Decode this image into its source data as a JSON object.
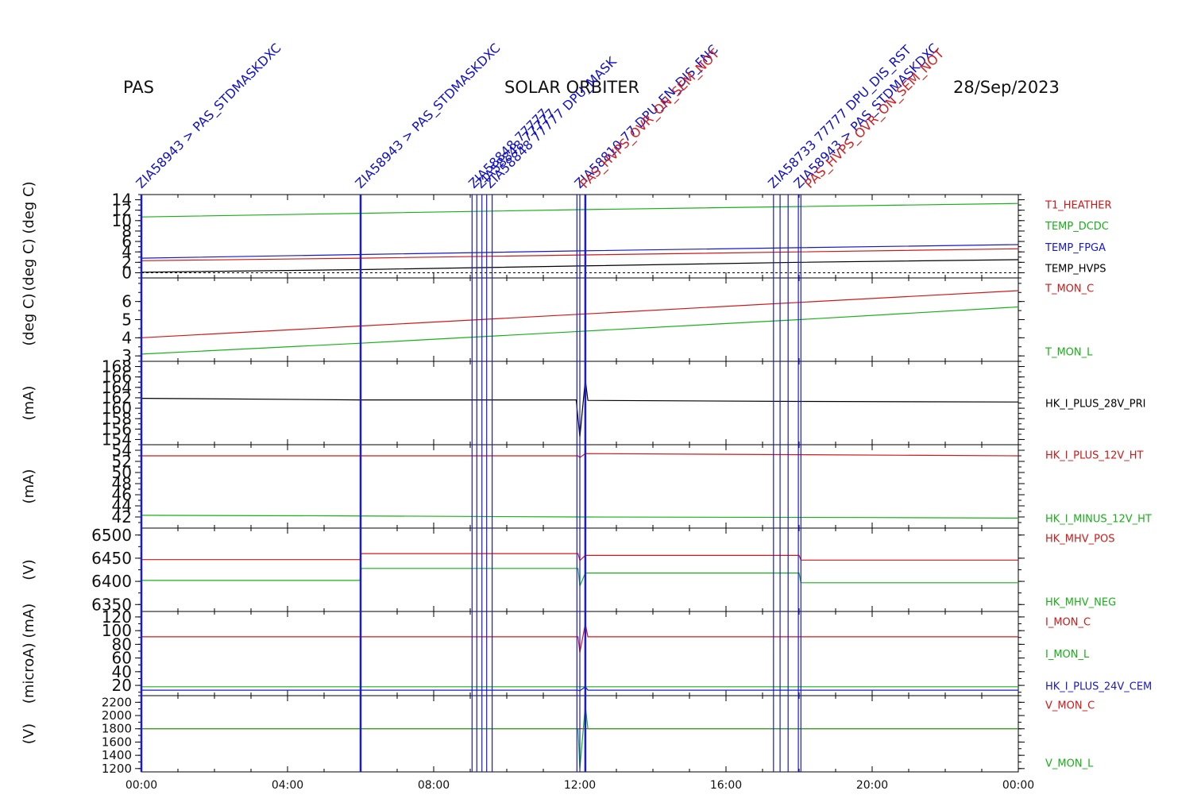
{
  "header": {
    "instrument": "PAS",
    "mission": "SOLAR ORBITER",
    "date": "28/Sep/2023"
  },
  "colors": {
    "black": "#000000",
    "red": "#d01818",
    "green": "#18b018",
    "blue": "#1818c8",
    "marker": "#1a1ad0"
  },
  "commands": {
    "labels": [
      {
        "hour": 0.0,
        "text": "ZIA58943 > PAS_STDMASKDXC",
        "color": "blue"
      },
      {
        "hour": 6.0,
        "text": "ZIA58943 > PAS_STDMASKDXC",
        "color": "blue"
      },
      {
        "hour": 9.1,
        "text": "ZIA58848 77777",
        "color": "blue"
      },
      {
        "hour": 9.3,
        "text": "ZIA58848 77777",
        "color": "blue"
      },
      {
        "hour": 9.55,
        "text": "ZIA58848 77777 DPU_MASK",
        "color": "blue"
      },
      {
        "hour": 12.0,
        "text": "ZIA58810 77 DPU_EN_DIS_FNC",
        "color": "blue"
      },
      {
        "hour": 12.15,
        "text": "PAS_HVPS_OVR_ON_SEM_NOT",
        "color": "red"
      },
      {
        "hour": 17.3,
        "text": "ZIA58733 77777 DPU_DIS_RST",
        "color": "blue"
      },
      {
        "hour": 18.0,
        "text": "ZIA58943 > PAS_STDMASKDXC",
        "color": "blue"
      },
      {
        "hour": 18.3,
        "text": "PAS_HVPS_OVR_ON_SEM_NOT",
        "color": "red"
      }
    ],
    "marker_hours": [
      0.0,
      6.0,
      9.05,
      9.18,
      9.32,
      9.45,
      9.6,
      11.92,
      12.0,
      12.15,
      17.3,
      17.48,
      17.7,
      17.98,
      18.05
    ]
  },
  "chart_data": {
    "type": "line",
    "x_axis": {
      "ticks": [
        "00:00",
        "04:00",
        "08:00",
        "12:00",
        "16:00",
        "20:00",
        "00:00"
      ],
      "range_hours": [
        0,
        24
      ]
    },
    "panels": [
      {
        "ylabel": "(deg C)  (deg C)",
        "ylim": [
          -1,
          15
        ],
        "yticks": [
          "0",
          "2",
          "4",
          "6",
          "8",
          "10",
          "12",
          "14"
        ],
        "tick_style": "big",
        "zero_line": true,
        "series": [
          {
            "name": "T1_HEATHER",
            "color": "red",
            "points": [
              [
                0,
                2.3
              ],
              [
                6,
                2.8
              ],
              [
                12,
                3.4
              ],
              [
                18,
                4.0
              ],
              [
                24,
                4.6
              ]
            ]
          },
          {
            "name": "TEMP_DCDC",
            "color": "green",
            "points": [
              [
                0,
                10.7
              ],
              [
                6,
                11.4
              ],
              [
                12,
                12.1
              ],
              [
                18,
                12.7
              ],
              [
                24,
                13.3
              ]
            ]
          },
          {
            "name": "TEMP_FPGA",
            "color": "blue",
            "points": [
              [
                0,
                2.8
              ],
              [
                6,
                3.5
              ],
              [
                12,
                4.2
              ],
              [
                18,
                4.8
              ],
              [
                24,
                5.4
              ]
            ]
          },
          {
            "name": "TEMP_HVPS",
            "color": "black",
            "points": [
              [
                0,
                0.1
              ],
              [
                6,
                0.6
              ],
              [
                12,
                1.3
              ],
              [
                18,
                2.0
              ],
              [
                24,
                2.5
              ]
            ]
          }
        ]
      },
      {
        "ylabel": "(deg C)",
        "ylim": [
          2.7,
          7.3
        ],
        "yticks": [
          "3",
          "4",
          "5",
          "6"
        ],
        "tick_style": "big",
        "series": [
          {
            "name": "T_MON_C",
            "color": "red",
            "points": [
              [
                0,
                4.0
              ],
              [
                6,
                4.65
              ],
              [
                12,
                5.3
              ],
              [
                18,
                5.95
              ],
              [
                24,
                6.6
              ]
            ]
          },
          {
            "name": "T_MON_L",
            "color": "green",
            "points": [
              [
                0,
                3.1
              ],
              [
                6,
                3.7
              ],
              [
                12,
                4.35
              ],
              [
                18,
                5.0
              ],
              [
                24,
                5.7
              ]
            ]
          }
        ]
      },
      {
        "ylabel": "(mA)",
        "ylim": [
          153,
          169
        ],
        "yticks": [
          "154",
          "156",
          "158",
          "160",
          "162",
          "164",
          "166",
          "168"
        ],
        "tick_style": "big",
        "series": [
          {
            "name": "HK_I_PLUS_28V_PRI",
            "color": "black",
            "points": [
              [
                0,
                161.9
              ],
              [
                6,
                161.6
              ],
              [
                11.9,
                161.6
              ],
              [
                12.0,
                154.5
              ],
              [
                12.15,
                165.5
              ],
              [
                12.22,
                161.5
              ],
              [
                18,
                161.3
              ],
              [
                24,
                161.2
              ]
            ]
          }
        ]
      },
      {
        "ylabel": "(mA)",
        "ylim": [
          40,
          55
        ],
        "yticks": [
          "42",
          "44",
          "46",
          "48",
          "50",
          "52",
          "54"
        ],
        "tick_style": "big",
        "series": [
          {
            "name": "HK_I_PLUS_12V_HT",
            "color": "red",
            "points": [
              [
                0,
                53.0
              ],
              [
                11.95,
                53.0
              ],
              [
                12.0,
                52.7
              ],
              [
                12.15,
                53.4
              ],
              [
                24,
                53.0
              ]
            ]
          },
          {
            "name": "HK_I_MINUS_12V_HT",
            "color": "green",
            "points": [
              [
                0,
                42.3
              ],
              [
                5.5,
                42.2
              ],
              [
                12,
                42.0
              ],
              [
                20,
                41.9
              ],
              [
                24,
                41.8
              ]
            ]
          }
        ]
      },
      {
        "ylabel": "(V)",
        "ylim": [
          6335,
          6515
        ],
        "yticks": [
          "6350",
          "6400",
          "6450",
          "6500"
        ],
        "tick_style": "big",
        "series": [
          {
            "name": "HK_MHV_POS",
            "color": "red",
            "points": [
              [
                0,
                6447
              ],
              [
                5.98,
                6447
              ],
              [
                6.02,
                6460
              ],
              [
                11.95,
                6460
              ],
              [
                12.0,
                6445
              ],
              [
                12.15,
                6456
              ],
              [
                18.0,
                6456
              ],
              [
                18.05,
                6446
              ],
              [
                24,
                6446
              ]
            ]
          },
          {
            "name": "HK_MHV_NEG",
            "color": "green",
            "points": [
              [
                0,
                6402
              ],
              [
                5.98,
                6402
              ],
              [
                6.02,
                6428
              ],
              [
                11.95,
                6428
              ],
              [
                12.0,
                6390
              ],
              [
                12.15,
                6418
              ],
              [
                18.0,
                6418
              ],
              [
                18.05,
                6397
              ],
              [
                24,
                6397
              ]
            ]
          }
        ]
      },
      {
        "ylabel": "(microA) (mA)",
        "ylim": [
          5,
          128
        ],
        "yticks": [
          "20",
          "40",
          "60",
          "80",
          "100",
          "120"
        ],
        "tick_style": "big",
        "series": [
          {
            "name": "I_MON_C",
            "color": "red",
            "points": [
              [
                0,
                91
              ],
              [
                11.95,
                91
              ],
              [
                12.0,
                68
              ],
              [
                12.15,
                110
              ],
              [
                12.22,
                91
              ],
              [
                24,
                91
              ]
            ]
          },
          {
            "name": "I_MON_L",
            "color": "green",
            "points": [
              [
                0,
                18
              ],
              [
                24,
                18
              ]
            ]
          },
          {
            "name": "HK_I_PLUS_24V_CEM",
            "color": "blue",
            "points": [
              [
                0,
                13
              ],
              [
                11.95,
                13
              ],
              [
                12.0,
                12
              ],
              [
                12.15,
                18
              ],
              [
                12.22,
                13
              ],
              [
                24,
                13
              ]
            ]
          }
        ]
      },
      {
        "ylabel": "(V)",
        "ylim": [
          1150,
          2300
        ],
        "yticks": [
          "1200",
          "1400",
          "1600",
          "1800",
          "2000",
          "2200"
        ],
        "tick_style": "small",
        "series": [
          {
            "name": "V_MON_C",
            "color": "red",
            "points": [
              [
                0,
                1800
              ],
              [
                24,
                1800
              ]
            ]
          },
          {
            "name": "V_MON_L",
            "color": "green",
            "points": [
              [
                0,
                1800
              ],
              [
                11.95,
                1800
              ],
              [
                12.0,
                1200
              ],
              [
                12.15,
                2150
              ],
              [
                12.22,
                1800
              ],
              [
                24,
                1800
              ]
            ]
          }
        ]
      }
    ]
  }
}
